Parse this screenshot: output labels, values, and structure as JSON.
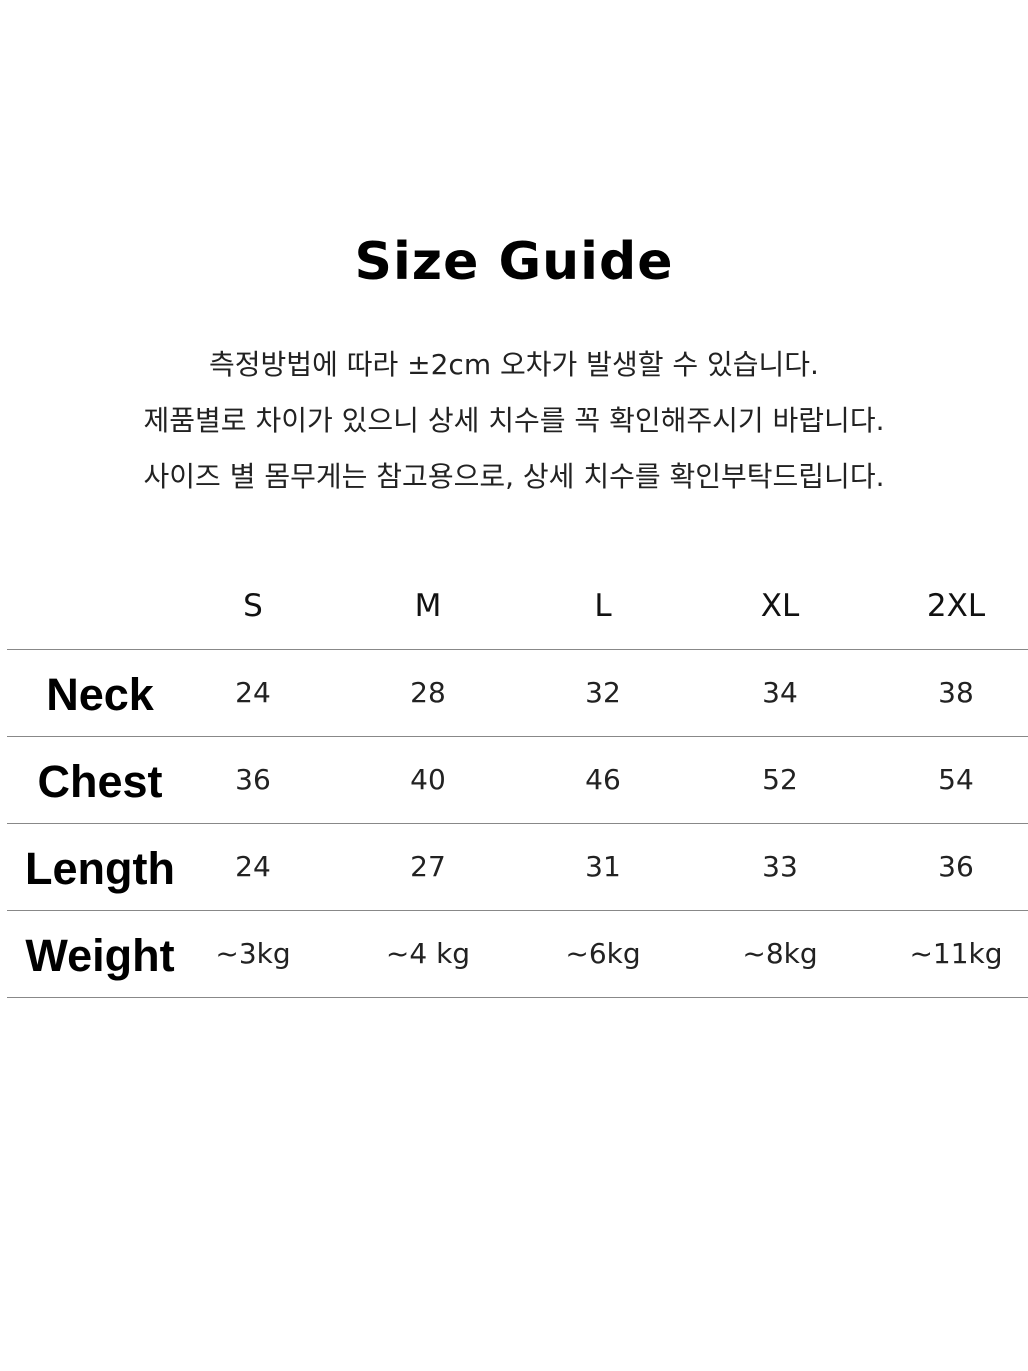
{
  "title": "Size Guide",
  "notes": [
    "측정방법에 따라 ±2cm 오차가 발생할 수 있습니다.",
    "제품별로 차이가 있으니 상세 치수를 꼭 확인해주시기 바랍니다.",
    "사이즈 별 몸무게는 참고용으로, 상세 치수를 확인부탁드립니다."
  ],
  "table": {
    "sizes": [
      "S",
      "M",
      "L",
      "XL",
      "2XL"
    ],
    "rows": [
      {
        "label": "Neck",
        "values": [
          "24",
          "28",
          "32",
          "34",
          "38"
        ]
      },
      {
        "label": "Chest",
        "values": [
          "36",
          "40",
          "46",
          "52",
          "54"
        ]
      },
      {
        "label": "Length",
        "values": [
          "24",
          "27",
          "31",
          "33",
          "36"
        ]
      },
      {
        "label": "Weight",
        "values": [
          "~3kg",
          "~4 kg",
          "~6kg",
          "~8kg",
          "~11kg"
        ]
      }
    ]
  }
}
